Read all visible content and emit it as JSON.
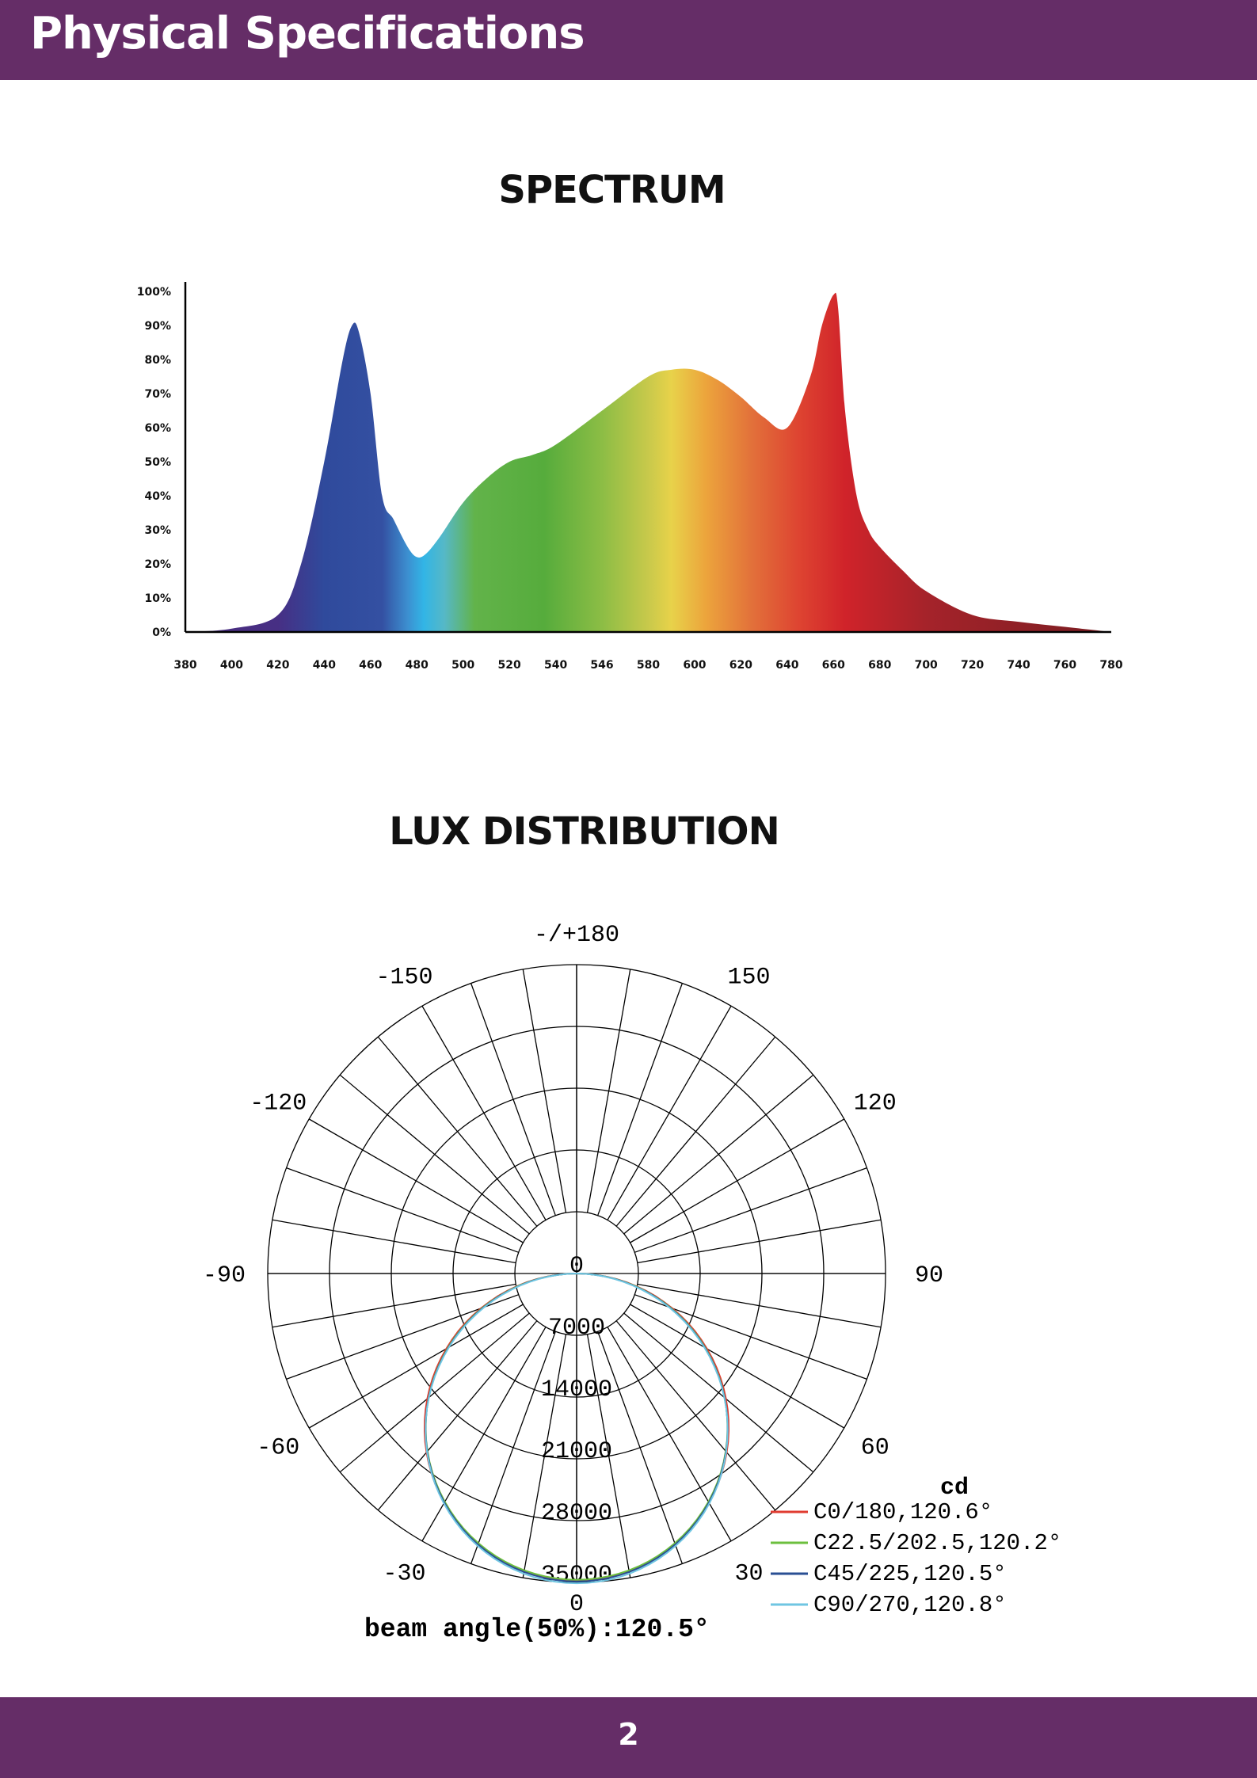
{
  "header": {
    "title": "Physical Specifications"
  },
  "footer": {
    "page_number": "2"
  },
  "colors": {
    "brand": "#652d67"
  },
  "chart_data": [
    {
      "type": "area",
      "title": "SPECTRUM",
      "xlabel": "",
      "ylabel": "",
      "x_tick_labels": [
        "380",
        "400",
        "420",
        "440",
        "460",
        "480",
        "500",
        "520",
        "540",
        "546",
        "580",
        "600",
        "620",
        "640",
        "660",
        "680",
        "700",
        "720",
        "740",
        "760",
        "780"
      ],
      "y_tick_labels": [
        "0%",
        "10%",
        "20%",
        "30%",
        "40%",
        "50%",
        "60%",
        "70%",
        "80%",
        "90%",
        "100%"
      ],
      "xlim": [
        380,
        780
      ],
      "ylim": [
        0,
        100
      ],
      "x": [
        380,
        400,
        420,
        430,
        440,
        448,
        452,
        455,
        460,
        465,
        470,
        476,
        480,
        484,
        490,
        500,
        510,
        520,
        530,
        540,
        560,
        580,
        590,
        600,
        610,
        620,
        630,
        640,
        650,
        655,
        660,
        662,
        665,
        670,
        675,
        680,
        690,
        700,
        720,
        740,
        760,
        780
      ],
      "values": [
        0,
        1,
        5,
        20,
        50,
        80,
        90,
        88,
        70,
        40,
        33,
        25,
        22,
        23,
        28,
        38,
        45,
        50,
        52,
        55,
        65,
        75,
        77,
        77,
        74,
        69,
        63,
        60,
        75,
        90,
        99,
        95,
        65,
        40,
        30,
        25,
        18,
        12,
        5,
        3,
        1.5,
        0
      ],
      "grid": false
    },
    {
      "type": "polar",
      "title": "LUX DISTRIBUTION",
      "unit": "cd",
      "radial_tick_labels": [
        "0",
        "7000",
        "14000",
        "21000",
        "28000",
        "35000"
      ],
      "r_max": 35000,
      "angle_labels": [
        "-/+180",
        "150",
        "120",
        "90",
        "60",
        "30",
        "0",
        "-30",
        "-60",
        "-90",
        "-120",
        "-150"
      ],
      "series": [
        {
          "name": "C0/180,120.6°",
          "color": "#e03c31",
          "beam_angle": 120.6,
          "peak_cd": 34800
        },
        {
          "name": "C22.5/202.5,120.2°",
          "color": "#6cbf3e",
          "beam_angle": 120.2,
          "peak_cd": 34700
        },
        {
          "name": "C45/225,120.5°",
          "color": "#2a4f93",
          "beam_angle": 120.5,
          "peak_cd": 34900
        },
        {
          "name": "C90/270,120.8°",
          "color": "#6fc6e2",
          "beam_angle": 120.8,
          "peak_cd": 35100
        }
      ],
      "beam_angle_label": "beam angle(50%):120.5°"
    }
  ]
}
